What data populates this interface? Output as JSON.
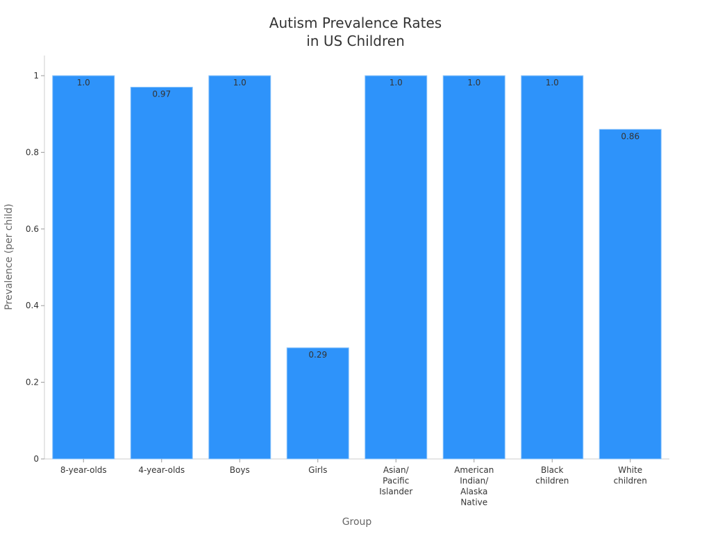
{
  "chart_data": {
    "type": "bar",
    "title": [
      "Autism Prevalence Rates",
      "in US Children"
    ],
    "xlabel": "Group",
    "ylabel": "Prevalence (per child)",
    "categories": [
      [
        "8-year-olds"
      ],
      [
        "4-year-olds"
      ],
      [
        "Boys"
      ],
      [
        "Girls"
      ],
      [
        "Asian/",
        "Pacific",
        "Islander"
      ],
      [
        "American",
        "Indian/",
        "Alaska",
        "Native"
      ],
      [
        "Black",
        "children"
      ],
      [
        "White",
        "children"
      ]
    ],
    "values": [
      1.0,
      0.97,
      1.0,
      0.29,
      1.0,
      1.0,
      1.0,
      0.86
    ],
    "data_labels": [
      "1.0",
      "0.97",
      "1.0",
      "0.29",
      "1.0",
      "1.0",
      "1.0",
      "0.86"
    ],
    "yticks": [
      0,
      0.2,
      0.4,
      0.6,
      0.8,
      1
    ],
    "ytick_labels": [
      "0",
      "0.2",
      "0.4",
      "0.6",
      "0.8",
      "1"
    ],
    "ylim": [
      0,
      1.05
    ],
    "grid": false,
    "bar_color": "#2e93fa",
    "bar_edge_color": "#8cc4fb"
  }
}
